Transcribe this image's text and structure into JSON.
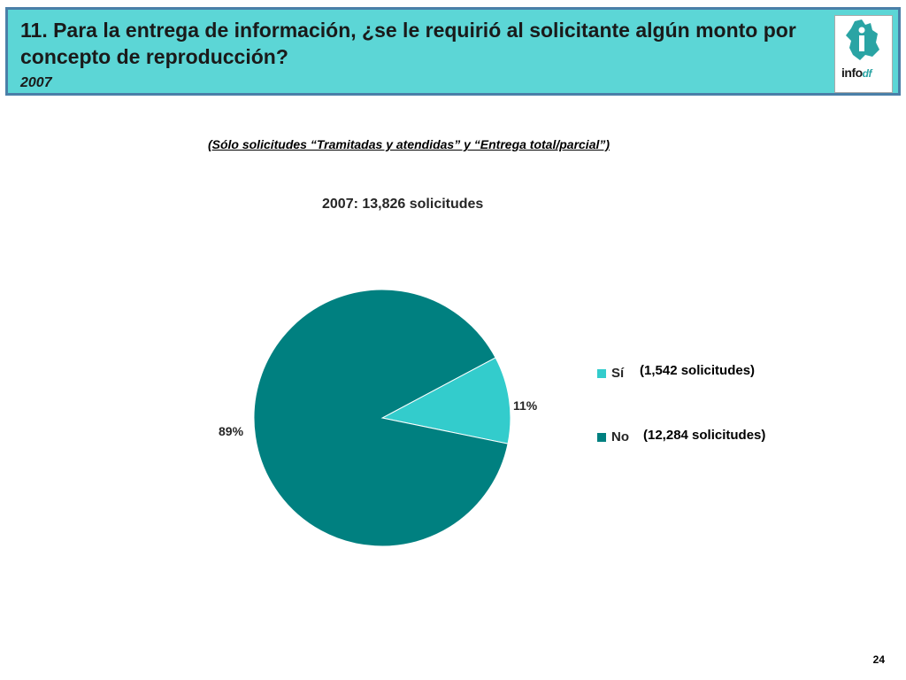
{
  "header": {
    "title": "11. Para la entrega de información, ¿se le requirió al solicitante algún monto por concepto de reproducción?",
    "year": "2007",
    "logo_text": "info",
    "logo_suffix": "df"
  },
  "subtitle": "(Sólo solicitudes “Tramitadas y atendidas” y “Entrega total/parcial”)",
  "chart_data": {
    "type": "pie",
    "title": "2007: 13,826 solicitudes",
    "slices": [
      {
        "label": "Sí",
        "value": 11,
        "display": "11%",
        "count_label": "(1,542 solicitudes)",
        "color": "#33cccc"
      },
      {
        "label": "No",
        "value": 89,
        "display": "89%",
        "count_label": "(12,284 solicitudes)",
        "color": "#008080"
      }
    ],
    "legend_position": "right"
  },
  "page_number": "24"
}
